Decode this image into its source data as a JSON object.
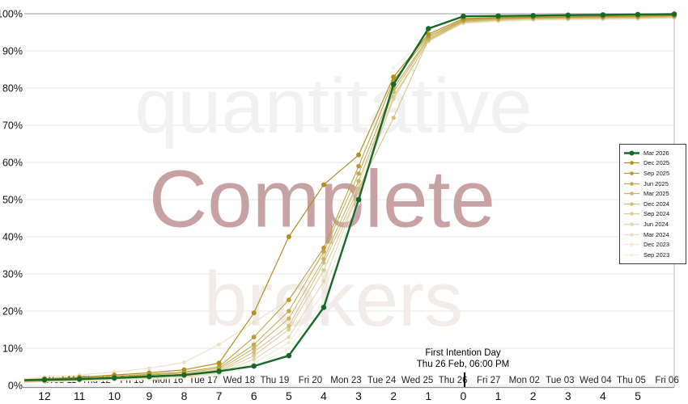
{
  "chart_data": {
    "type": "line",
    "title": "",
    "legend_position": "right",
    "grid": "horizontal",
    "watermarks": [
      {
        "text": "quantitative",
        "color": "#f1f1f1"
      },
      {
        "text": "Complete",
        "color": "#c8a2a2"
      },
      {
        "text": "brokers",
        "color": "#f1ecea"
      }
    ],
    "annotation": {
      "line1": "First Intention Day",
      "line2": "Thu 26 Feb, 06:00 PM"
    },
    "y_axis": {
      "min": 0,
      "max": 100,
      "ticks": [
        "0%",
        "10%",
        "20%",
        "30%",
        "40%",
        "50%",
        "60%",
        "70%",
        "80%",
        "90%",
        "100%"
      ]
    },
    "x_axis": {
      "date_labels": [
        "Wed 11",
        "Thu 12",
        "Fri 13",
        "Mon 16",
        "Tue 17",
        "Wed 18",
        "Thu 19",
        "Fri 20",
        "Mon 23",
        "Tue 24",
        "Wed 25",
        "Thu 26",
        "Fri 27",
        "Mon 02",
        "Tue 03",
        "Wed 04",
        "Thu 05",
        "Fri 06"
      ],
      "countdown_labels": [
        "12",
        "11",
        "10",
        "9",
        "8",
        "7",
        "6",
        "5",
        "4",
        "3",
        "2",
        "1",
        "0",
        "1",
        "2",
        "3",
        "4",
        "5"
      ],
      "note": "values have one extra trailing point at the right plot edge"
    },
    "series": [
      {
        "name": "Mar 2026",
        "color": "#17682b",
        "line_width": 2.4,
        "marker_radius": 3.3,
        "values": [
          1.5,
          1.7,
          2.0,
          2.4,
          2.8,
          3.8,
          5.2,
          8.0,
          21.0,
          50.0,
          81.0,
          96.0,
          99.3,
          99.4,
          99.5,
          99.6,
          99.7,
          99.8,
          99.9
        ]
      },
      {
        "name": "Dec 2025",
        "color": "#b08f1d",
        "line_width": 1.2,
        "marker_radius": 3.0,
        "values": [
          1.8,
          2.2,
          2.8,
          3.4,
          4.2,
          6.0,
          19.5,
          40.0,
          54.0,
          62.0,
          83.0,
          94.5,
          98.7,
          99.0,
          99.1,
          99.2,
          99.3,
          99.4,
          99.6
        ]
      },
      {
        "name": "Sep 2025",
        "color": "#b99b33",
        "line_width": 1.0,
        "marker_radius": 2.9,
        "values": [
          1.6,
          2.0,
          2.5,
          3.0,
          3.6,
          5.0,
          13.0,
          23.0,
          37.0,
          59.0,
          82.0,
          94.0,
          98.4,
          98.8,
          99.0,
          99.1,
          99.2,
          99.3,
          99.5
        ]
      },
      {
        "name": "Jun 2025",
        "color": "#c2a94b",
        "line_width": 1.0,
        "marker_radius": 2.8,
        "values": [
          1.4,
          1.8,
          2.2,
          2.8,
          3.3,
          4.6,
          11.0,
          20.0,
          36.0,
          57.0,
          80.0,
          93.6,
          98.2,
          98.7,
          98.9,
          99.0,
          99.1,
          99.2,
          99.4
        ]
      },
      {
        "name": "Mar 2025",
        "color": "#cab564",
        "line_width": 1.0,
        "marker_radius": 2.7,
        "values": [
          1.3,
          1.6,
          2.0,
          2.5,
          3.0,
          4.2,
          10.0,
          18.0,
          34.0,
          55.0,
          79.0,
          93.2,
          98.0,
          98.5,
          98.8,
          98.9,
          99.0,
          99.1,
          99.3
        ]
      },
      {
        "name": "Dec 2024",
        "color": "#d2c07d",
        "line_width": 1.0,
        "marker_radius": 2.6,
        "values": [
          1.2,
          1.5,
          1.9,
          2.3,
          2.8,
          3.8,
          9.0,
          16.0,
          33.0,
          53.0,
          72.0,
          93.0,
          97.8,
          98.4,
          98.7,
          98.8,
          98.9,
          99.0,
          99.2
        ]
      },
      {
        "name": "Sep 2024",
        "color": "#dacb96",
        "line_width": 1.0,
        "marker_radius": 2.5,
        "values": [
          1.1,
          1.4,
          1.8,
          2.1,
          2.6,
          3.6,
          8.0,
          15.0,
          31.0,
          52.0,
          77.5,
          92.8,
          97.7,
          98.3,
          98.6,
          98.7,
          98.8,
          98.9,
          99.1
        ]
      },
      {
        "name": "Jun 2024",
        "color": "#e2d6ae",
        "line_width": 1.0,
        "marker_radius": 2.4,
        "values": [
          1.0,
          1.3,
          1.7,
          2.0,
          2.4,
          3.3,
          7.0,
          13.0,
          28.0,
          52.0,
          77.0,
          92.6,
          97.6,
          98.2,
          98.5,
          98.6,
          98.7,
          98.8,
          99.0
        ]
      },
      {
        "name": "Mar 2024",
        "color": "#e9dfc2",
        "line_width": 1.0,
        "marker_radius": 2.3,
        "values": [
          2.2,
          2.8,
          3.6,
          4.6,
          6.2,
          11.0,
          17.0,
          23.0,
          35.0,
          54.0,
          78.0,
          92.5,
          97.5,
          98.1,
          98.4,
          98.5,
          98.6,
          98.7,
          98.9
        ]
      },
      {
        "name": "Dec 2023",
        "color": "#f0e9d5",
        "line_width": 1.0,
        "marker_radius": 2.2,
        "values": [
          1.0,
          1.2,
          1.5,
          1.8,
          2.2,
          3.0,
          6.0,
          11.5,
          25.0,
          51.0,
          80.0,
          93.0,
          97.4,
          98.0,
          98.3,
          98.4,
          98.5,
          98.6,
          98.8
        ]
      },
      {
        "name": "Sep 2023",
        "color": "#f5f0e3",
        "line_width": 1.0,
        "marker_radius": 2.1,
        "values": [
          0.9,
          1.1,
          1.3,
          1.6,
          2.0,
          2.6,
          5.0,
          10.0,
          22.5,
          49.0,
          85.5,
          94.2,
          97.3,
          97.9,
          98.2,
          98.3,
          98.4,
          98.5,
          98.8
        ]
      }
    ]
  }
}
